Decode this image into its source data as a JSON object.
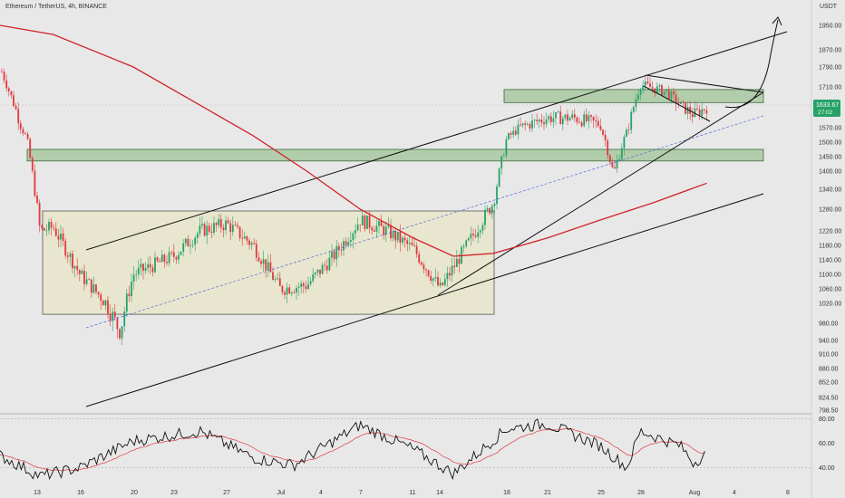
{
  "header": {
    "symbol": "Ethereum / TetherUS, 4h, BINANCE",
    "currency": "USDT"
  },
  "price_badge": {
    "price": "1633.67",
    "countdown": "27:02",
    "color": "#26a269"
  },
  "colors": {
    "background": "#e8e8e8",
    "up": "#26a269",
    "down": "#e0383e",
    "ma": "#d1232a",
    "zone_fill": "#a8c8a0",
    "zone_stroke": "#3a6a3a",
    "range_fill": "#e9e6cf",
    "midline": "#4f6be0",
    "rsi_line": "#111111",
    "rsi_signal": "#e0383e"
  },
  "chart_data": {
    "type": "candlestick",
    "y_ticks": [
      "1950.00",
      "1870.00",
      "1790.00",
      "1710.00",
      "1633.67",
      "1570.00",
      "1500.00",
      "1450.00",
      "1400.00",
      "1340.00",
      "1280.00",
      "1220.00",
      "1180.00",
      "1140.00",
      "1100.00",
      "1060.00",
      "1020.00",
      "980.00",
      "940.00",
      "910.00",
      "880.00",
      "852.00",
      "824.50",
      "798.50"
    ],
    "x_ticks": [
      "13",
      "16",
      "20",
      "23",
      "27",
      "Jul",
      "4",
      "7",
      "11",
      "14",
      "18",
      "21",
      "25",
      "28",
      "Aug",
      "4",
      "8"
    ],
    "rsi_ticks": [
      "80.00",
      "60.00",
      "40.00"
    ],
    "price_panel_ylim": [
      790,
      2000
    ],
    "rsi_ylim": [
      30,
      82
    ],
    "support_zones": [
      {
        "name": "upper-zone",
        "low": 1650,
        "high": 1700
      },
      {
        "name": "lower-zone",
        "low": 1435,
        "high": 1475
      }
    ],
    "range_box": {
      "low": 998,
      "high": 1275
    },
    "moving_average": [
      {
        "date": "Jun 10",
        "value": 1990
      },
      {
        "date": "Jun 14",
        "value": 1920
      },
      {
        "date": "Jun 20",
        "value": 1790
      },
      {
        "date": "Jun 25",
        "value": 1640
      },
      {
        "date": "Jun 29",
        "value": 1530
      },
      {
        "date": "Jul 3",
        "value": 1400
      },
      {
        "date": "Jul 7",
        "value": 1280
      },
      {
        "date": "Jul 11",
        "value": 1200
      },
      {
        "date": "Jul 14",
        "value": 1150
      },
      {
        "date": "Jul 17",
        "value": 1158
      },
      {
        "date": "Jul 21",
        "value": 1200
      },
      {
        "date": "Jul 25",
        "value": 1250
      },
      {
        "date": "Jul 29",
        "value": 1300
      },
      {
        "date": "Aug 2",
        "value": 1360
      }
    ],
    "close_path": [
      {
        "date": "Jun 10",
        "close": 1790
      },
      {
        "date": "Jun 11",
        "close": 1650
      },
      {
        "date": "Jun 12",
        "close": 1520
      },
      {
        "date": "Jun 13",
        "close": 1220
      },
      {
        "date": "Jun 14",
        "close": 1230
      },
      {
        "date": "Jun 16",
        "close": 1100
      },
      {
        "date": "Jun 18",
        "close": 1020
      },
      {
        "date": "Jun 19",
        "close": 960
      },
      {
        "date": "Jun 20",
        "close": 1100
      },
      {
        "date": "Jun 23",
        "close": 1150
      },
      {
        "date": "Jun 25",
        "close": 1220
      },
      {
        "date": "Jun 27",
        "close": 1240
      },
      {
        "date": "Jun 29",
        "close": 1180
      },
      {
        "date": "Jul 1",
        "close": 1060
      },
      {
        "date": "Jul 3",
        "close": 1070
      },
      {
        "date": "Jul 5",
        "close": 1150
      },
      {
        "date": "Jul 7",
        "close": 1250
      },
      {
        "date": "Jul 9",
        "close": 1220
      },
      {
        "date": "Jul 11",
        "close": 1170
      },
      {
        "date": "Jul 13",
        "close": 1060
      },
      {
        "date": "Jul 15",
        "close": 1180
      },
      {
        "date": "Jul 17",
        "close": 1300
      },
      {
        "date": "Jul 18",
        "close": 1520
      },
      {
        "date": "Jul 19",
        "close": 1570
      },
      {
        "date": "Jul 21",
        "close": 1600
      },
      {
        "date": "Jul 23",
        "close": 1600
      },
      {
        "date": "Jul 25",
        "close": 1580
      },
      {
        "date": "Jul 26",
        "close": 1390
      },
      {
        "date": "Jul 27",
        "close": 1550
      },
      {
        "date": "Jul 28",
        "close": 1720
      },
      {
        "date": "Jul 30",
        "close": 1690
      },
      {
        "date": "Jul 31",
        "close": 1640
      },
      {
        "date": "Aug 1",
        "close": 1610
      },
      {
        "date": "Aug 2",
        "close": 1633
      }
    ],
    "rsi": [
      {
        "date": "Jun 10",
        "value": 50
      },
      {
        "date": "Jun 13",
        "value": 33
      },
      {
        "date": "Jun 16",
        "value": 40
      },
      {
        "date": "Jun 20",
        "value": 62
      },
      {
        "date": "Jun 25",
        "value": 70
      },
      {
        "date": "Jun 29",
        "value": 48
      },
      {
        "date": "Jul 2",
        "value": 42
      },
      {
        "date": "Jul 7",
        "value": 75
      },
      {
        "date": "Jul 11",
        "value": 55
      },
      {
        "date": "Jul 14",
        "value": 35
      },
      {
        "date": "Jul 18",
        "value": 72
      },
      {
        "date": "Jul 21",
        "value": 76
      },
      {
        "date": "Jul 25",
        "value": 58
      },
      {
        "date": "Jul 27",
        "value": 40
      },
      {
        "date": "Jul 28",
        "value": 70
      },
      {
        "date": "Jul 31",
        "value": 58
      },
      {
        "date": "Aug 1",
        "value": 44
      },
      {
        "date": "Aug 2",
        "value": 52
      }
    ]
  }
}
